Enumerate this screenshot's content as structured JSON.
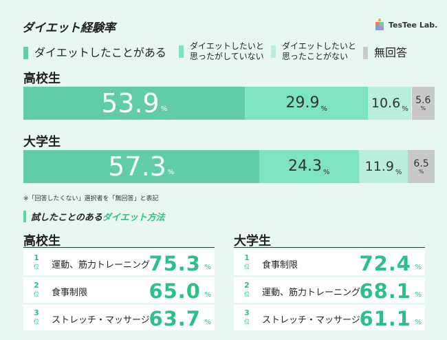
{
  "title": "ダイエット経験率",
  "logo": "TesTee Lab.",
  "colors": {
    "experienced": "#60cda8",
    "want_not_tried": "#7ee3c2",
    "want_no_experience": "#b9eedc",
    "no_answer": "#c9c9c9",
    "accent": "#2fbf8a"
  },
  "chart_data": {
    "type": "bar",
    "orientation": "horizontal-stacked",
    "title": "ダイエット経験率",
    "unit": "%",
    "categories": [
      "高校生",
      "大学生"
    ],
    "series": [
      {
        "name": "ダイエットしたことがある",
        "values": [
          53.9,
          57.3
        ]
      },
      {
        "name": "ダイエットしたいと\n思ったがしていない",
        "values": [
          29.9,
          24.3
        ]
      },
      {
        "name": "ダイエットしたいと\n思ったことがない",
        "values": [
          10.6,
          11.9
        ]
      },
      {
        "name": "無回答",
        "values": [
          5.6,
          6.5
        ]
      }
    ],
    "xlim": [
      0,
      100
    ]
  },
  "note": "※「回答したくない」選択者を「無回答」と表記",
  "methods_title": {
    "part1": "試したことのある",
    "part2": "ダイエット方法"
  },
  "rank_unit": "位",
  "rankings": [
    {
      "group": "高校生",
      "items": [
        {
          "rank": "1",
          "name": "運動、筋力トレーニング",
          "value": "75.3"
        },
        {
          "rank": "2",
          "name": "食事制限",
          "value": "65.0"
        },
        {
          "rank": "3",
          "name": "ストレッチ・マッサージ",
          "value": "63.7"
        }
      ]
    },
    {
      "group": "大学生",
      "items": [
        {
          "rank": "1",
          "name": "食事制限",
          "value": "72.4"
        },
        {
          "rank": "2",
          "name": "運動、筋力トレーニング",
          "value": "68.1"
        },
        {
          "rank": "3",
          "name": "ストレッチ・マッサージ",
          "value": "61.1"
        }
      ]
    }
  ]
}
